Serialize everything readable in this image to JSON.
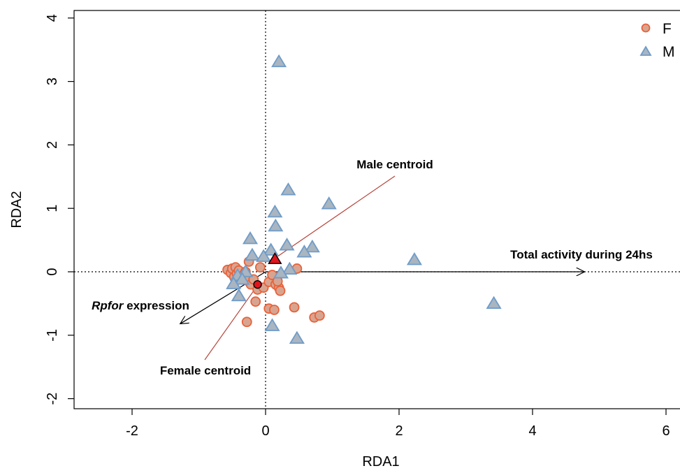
{
  "chart_data": {
    "type": "scatter",
    "xlabel": "RDA1",
    "ylabel": "RDA2",
    "xlim": [
      -2.8,
      6.3
    ],
    "ylim": [
      -2.2,
      4.1
    ],
    "xticks": [
      "-2",
      "0",
      "2",
      "4",
      "6"
    ],
    "yticks": [
      "-2",
      "-1",
      "0",
      "1",
      "2",
      "3",
      "4"
    ],
    "grid": false,
    "legend_position": "top-right",
    "colors": {
      "F_fill": "#d9a48f",
      "F_stroke": "#e8623a",
      "M_fill": "#a9b5c0",
      "M_stroke": "#6f9cc9",
      "centroid": "#e0141c",
      "centroid_line": "#b6443a"
    },
    "series": [
      {
        "name": "F",
        "marker": "circle",
        "points": [
          [
            -0.57,
            0.03
          ],
          [
            -0.52,
            -0.02
          ],
          [
            -0.5,
            0.05
          ],
          [
            -0.47,
            -0.08
          ],
          [
            -0.45,
            0.07
          ],
          [
            -0.43,
            -0.03
          ],
          [
            -0.4,
            0.02
          ],
          [
            -0.37,
            -0.1
          ],
          [
            -0.33,
            -0.05
          ],
          [
            -0.3,
            0.0
          ],
          [
            -0.27,
            -0.14
          ],
          [
            -0.25,
            0.16
          ],
          [
            -0.22,
            -0.2
          ],
          [
            -0.18,
            -0.12
          ],
          [
            -0.15,
            -0.47
          ],
          [
            -0.12,
            -0.28
          ],
          [
            -0.08,
            0.07
          ],
          [
            -0.03,
            -0.25
          ],
          [
            0.05,
            -0.16
          ],
          [
            0.1,
            -0.05
          ],
          [
            0.15,
            -0.2
          ],
          [
            0.2,
            -0.25
          ],
          [
            0.22,
            -0.3
          ],
          [
            0.18,
            -0.15
          ],
          [
            0.05,
            -0.58
          ],
          [
            0.13,
            -0.6
          ],
          [
            0.43,
            -0.56
          ],
          [
            0.47,
            0.05
          ],
          [
            0.73,
            -0.72
          ],
          [
            0.81,
            -0.69
          ],
          [
            -0.28,
            -0.79
          ]
        ]
      },
      {
        "name": "M",
        "marker": "triangle",
        "points": [
          [
            0.2,
            3.31
          ],
          [
            0.34,
            1.29
          ],
          [
            0.95,
            1.07
          ],
          [
            0.14,
            0.94
          ],
          [
            0.15,
            0.72
          ],
          [
            -0.23,
            0.52
          ],
          [
            0.32,
            0.42
          ],
          [
            0.7,
            0.39
          ],
          [
            0.08,
            0.34
          ],
          [
            0.58,
            0.31
          ],
          [
            -0.2,
            0.26
          ],
          [
            -0.03,
            0.24
          ],
          [
            2.23,
            0.19
          ],
          [
            0.36,
            0.04
          ],
          [
            0.23,
            -0.02
          ],
          [
            -0.3,
            0.0
          ],
          [
            -0.42,
            -0.06
          ],
          [
            -0.35,
            -0.12
          ],
          [
            -0.48,
            -0.19
          ],
          [
            -0.4,
            -0.38
          ],
          [
            3.42,
            -0.5
          ],
          [
            0.1,
            -0.85
          ],
          [
            0.47,
            -1.05
          ]
        ]
      }
    ],
    "centroids": [
      {
        "name": "Male centroid",
        "marker": "triangle",
        "x": 0.14,
        "y": 0.2
      },
      {
        "name": "Female centroid",
        "marker": "circle",
        "x": -0.12,
        "y": -0.2
      }
    ],
    "arrows": [
      {
        "label": "Total activity during 24hs",
        "x": 4.78,
        "y": 0.0
      },
      {
        "label_italic": "Rpfor",
        "label_rest": " expression",
        "x": -1.28,
        "y": -0.82
      }
    ],
    "annotations": {
      "male_centroid_label": "Male centroid",
      "female_centroid_label": "Female centroid"
    }
  }
}
